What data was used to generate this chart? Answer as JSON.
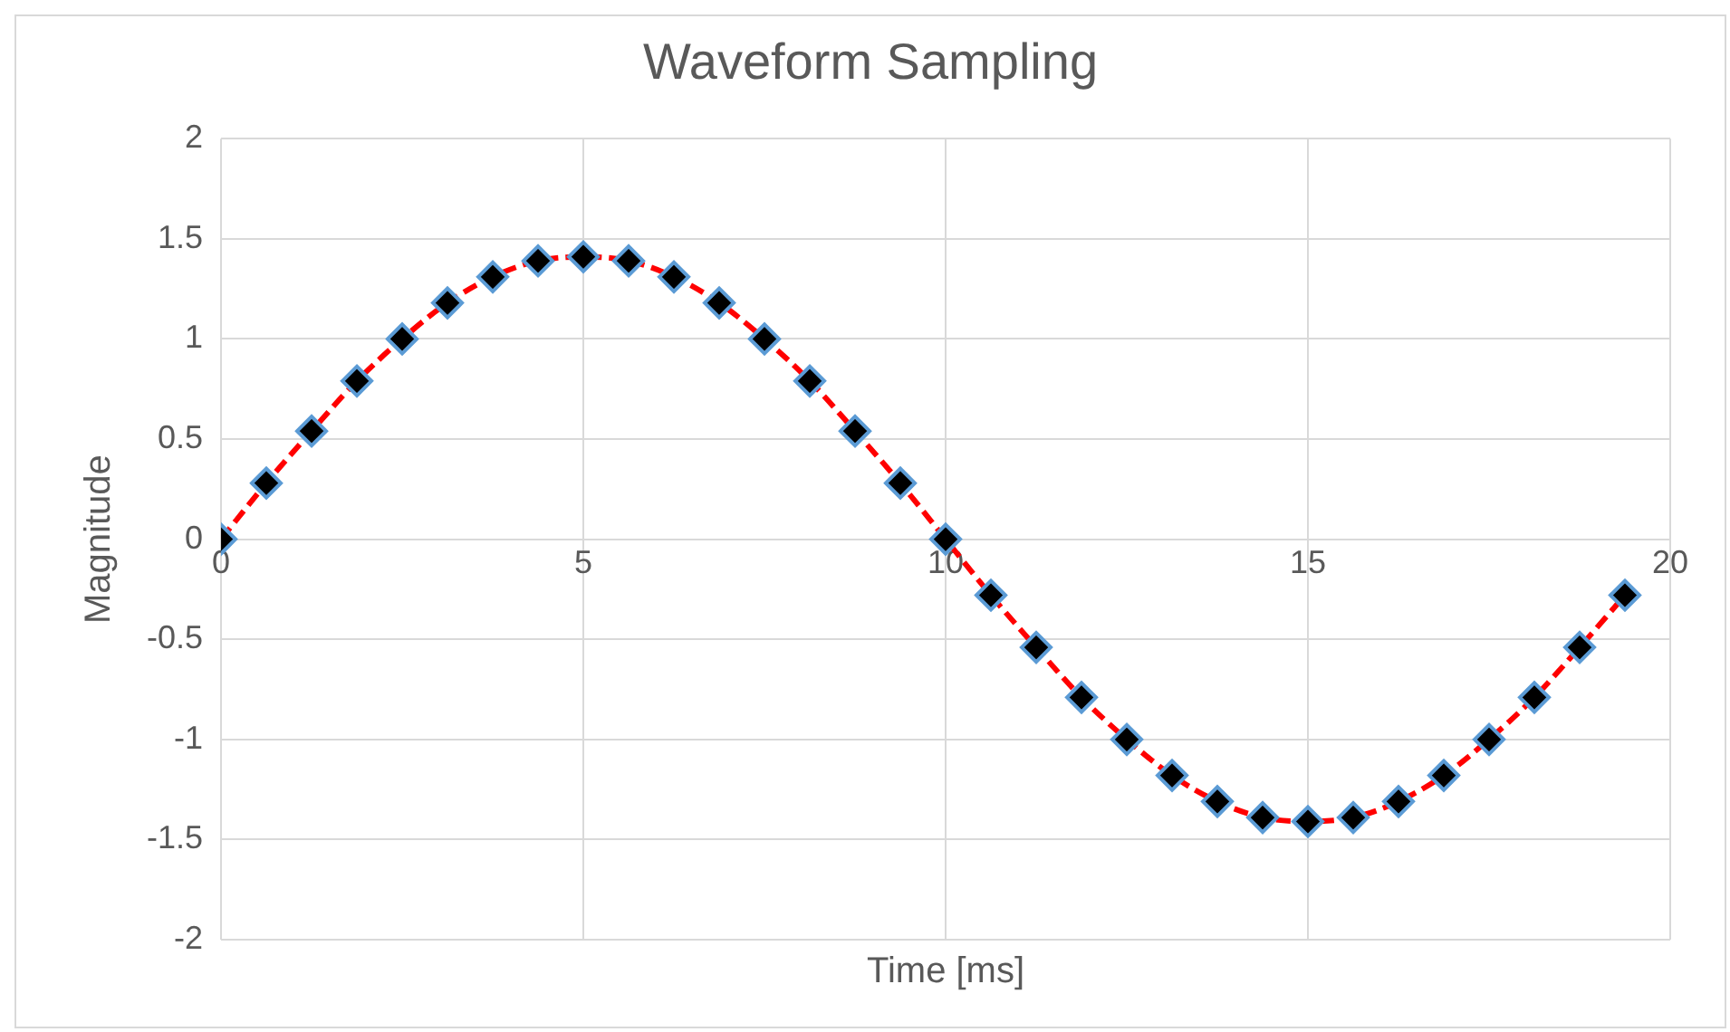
{
  "chart_data": {
    "type": "line",
    "title": "Waveform Sampling",
    "xlabel": "Time [ms]",
    "ylabel": "Magnitude",
    "x": [
      0,
      0.625,
      1.25,
      1.875,
      2.5,
      3.125,
      3.75,
      4.375,
      5,
      5.625,
      6.25,
      6.875,
      7.5,
      8.125,
      8.75,
      9.375,
      10,
      10.625,
      11.25,
      11.875,
      12.5,
      13.125,
      13.75,
      14.375,
      15,
      15.625,
      16.25,
      16.875,
      17.5,
      18.125,
      18.75,
      19.375
    ],
    "series": [
      {
        "color": "#ff0000",
        "values": [
          0,
          0.28,
          0.54,
          0.79,
          1,
          1.18,
          1.31,
          1.39,
          1.41,
          1.39,
          1.31,
          1.18,
          1,
          0.79,
          0.54,
          0.28,
          0,
          -0.28,
          -0.54,
          -0.79,
          -1,
          -1.18,
          -1.31,
          -1.39,
          -1.41,
          -1.39,
          -1.31,
          -1.18,
          -1,
          -0.79,
          -0.54,
          -0.28
        ]
      }
    ],
    "xlim": [
      0,
      20
    ],
    "xticks": [
      0,
      5,
      10,
      15,
      20
    ],
    "ylim": [
      -2,
      2
    ],
    "yticks": [
      -2,
      -1.5,
      -1,
      -0.5,
      0,
      0.5,
      1,
      1.5,
      2
    ],
    "grid": true,
    "legend": false,
    "marker": "diamond",
    "line_style": "dashed"
  }
}
